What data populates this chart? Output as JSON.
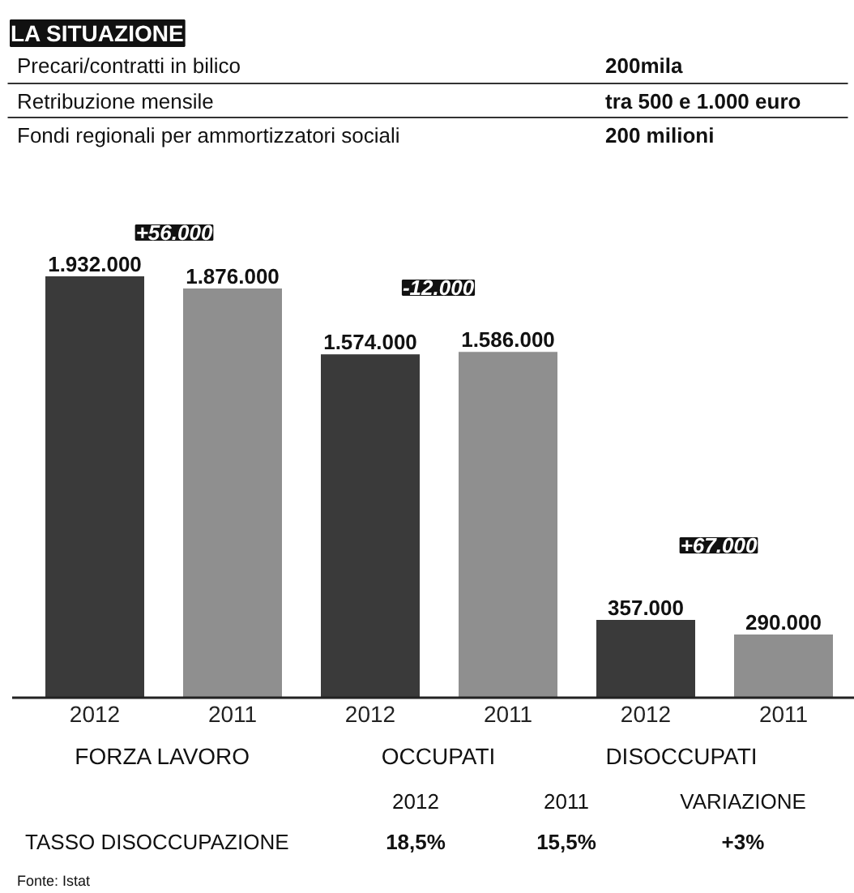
{
  "chart_data": {
    "type": "bar",
    "title": "LA SITUAZIONE",
    "categories": [
      "2012",
      "2011",
      "2012",
      "2011",
      "2012",
      "2011"
    ],
    "values": [
      1932000,
      1876000,
      1574000,
      1586000,
      357000,
      290000
    ],
    "colors": [
      "#3a3a3a",
      "#8f8f8f",
      "#3a3a3a",
      "#8f8f8f",
      "#3a3a3a",
      "#8f8f8f"
    ],
    "value_labels": [
      "1.932.000",
      "1.876.000",
      "1.574.000",
      "1.586.000",
      "357.000",
      "290.000"
    ],
    "annotations": [
      "Precari/contratti in bilico",
      "200mila",
      "Retribuzione mensile",
      "tra 500 e 1.000 euro",
      "Fondi regionali per ammortizzatori sociali",
      "200 milioni",
      "+56.000",
      "-12.000",
      "+67.000",
      "FORZA LAVORO",
      "OCCUPATI",
      "DISOCCUPATI",
      "2012",
      "2011",
      "VARIAZIONE",
      "TASSO DISOCCUPAZIONE",
      "18,5%",
      "15,5%",
      "+3%",
      "Fonte: Istat"
    ]
  }
}
